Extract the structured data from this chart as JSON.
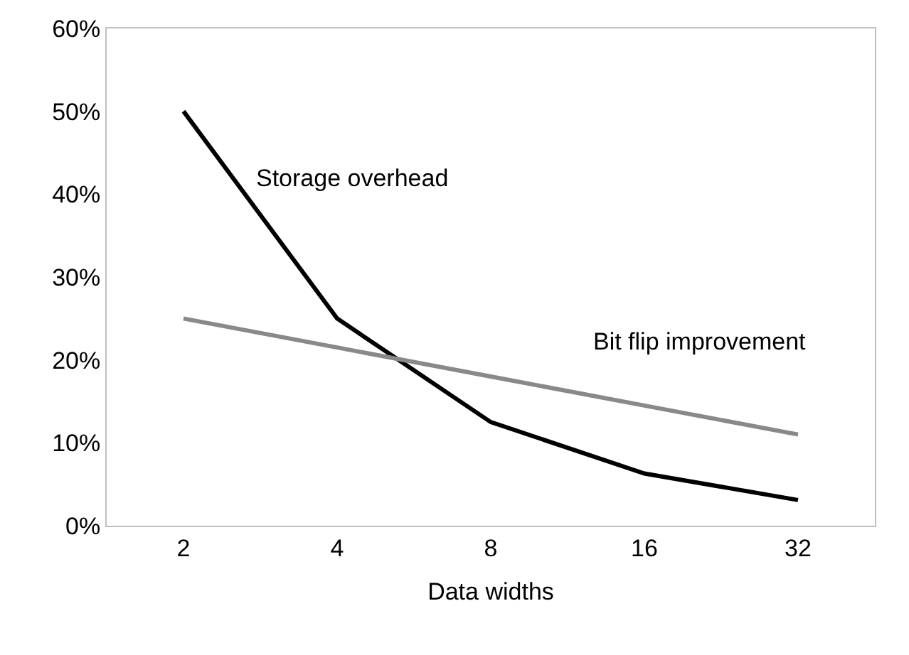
{
  "chart_data": {
    "type": "line",
    "xlabel": "Data widths",
    "categories": [
      "2",
      "4",
      "8",
      "16",
      "32"
    ],
    "series": [
      {
        "name": "Storage overhead",
        "color": "#000000",
        "values": [
          50,
          25,
          12.5,
          6.3,
          3.1
        ]
      },
      {
        "name": "Bit flip improvement",
        "color": "#898989",
        "values": [
          25,
          21.5,
          18,
          14.5,
          11
        ]
      }
    ],
    "ylim": [
      0,
      60
    ],
    "yticks": [
      {
        "value": 0,
        "label": "0%"
      },
      {
        "value": 10,
        "label": "10%"
      },
      {
        "value": 20,
        "label": "20%"
      },
      {
        "value": 30,
        "label": "30%"
      },
      {
        "value": 40,
        "label": "40%"
      },
      {
        "value": 50,
        "label": "50%"
      },
      {
        "value": 60,
        "label": "60%"
      }
    ],
    "legend": false,
    "marker": "none",
    "line_style": "solid"
  }
}
